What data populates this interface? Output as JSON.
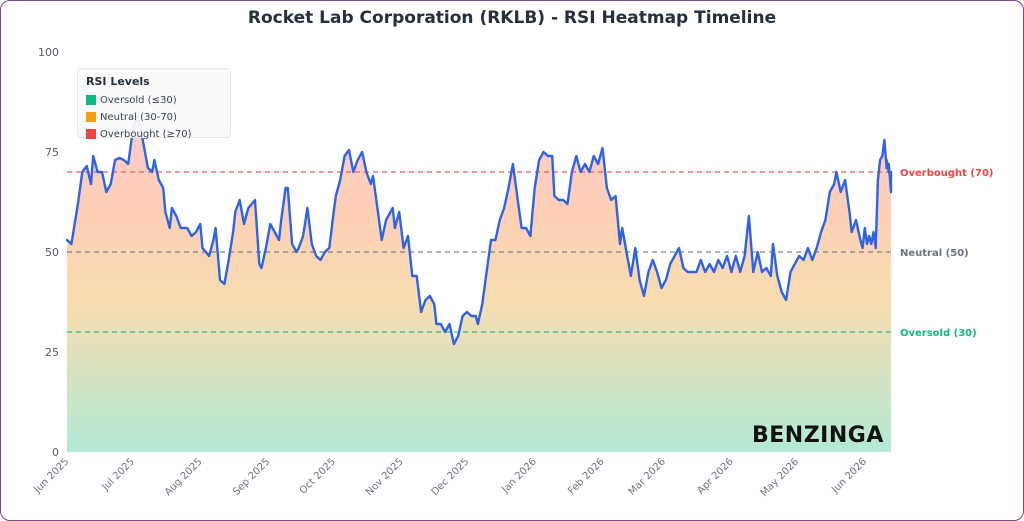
{
  "chart_data": {
    "type": "line",
    "title": "Rocket Lab Corporation (RKLB) - RSI Heatmap Timeline",
    "ylim": [
      0,
      100
    ],
    "y_ticks": [
      "0",
      "25",
      "50",
      "75",
      "100"
    ],
    "x_range": [
      "2025-05-31",
      "2026-06-12"
    ],
    "x_ticks": [
      {
        "date": "2025-06-01",
        "label": "Jun 2025"
      },
      {
        "date": "2025-07-01",
        "label": "Jul 2025"
      },
      {
        "date": "2025-08-01",
        "label": "Aug 2025"
      },
      {
        "date": "2025-09-01",
        "label": "Sep 2025"
      },
      {
        "date": "2025-10-01",
        "label": "Oct 2025"
      },
      {
        "date": "2025-11-01",
        "label": "Nov 2025"
      },
      {
        "date": "2025-12-01",
        "label": "Dec 2025"
      },
      {
        "date": "2026-01-01",
        "label": "Jan 2026"
      },
      {
        "date": "2026-02-01",
        "label": "Feb 2026"
      },
      {
        "date": "2026-03-01",
        "label": "Mar 2026"
      },
      {
        "date": "2026-04-01",
        "label": "Apr 2026"
      },
      {
        "date": "2026-05-01",
        "label": "May 2026"
      },
      {
        "date": "2026-06-01",
        "label": "Jun 2026"
      }
    ],
    "reference_lines": [
      {
        "value": 70,
        "label": "Overbought (70)",
        "color": "#ef4444"
      },
      {
        "value": 50,
        "label": "Neutral (50)",
        "color": "#6b7280"
      },
      {
        "value": 30,
        "label": "Oversold (30)",
        "color": "#10b981"
      }
    ],
    "legend": {
      "title": "RSI Levels",
      "placement": "top-left",
      "items": [
        {
          "label": "Oversold (≤30)",
          "color": "#10b981"
        },
        {
          "label": "Neutral (30-70)",
          "color": "#f59e0b"
        },
        {
          "label": "Overbought (≥70)",
          "color": "#ef4444"
        }
      ]
    },
    "series": [
      {
        "color": "#2f63e6",
        "points": [
          [
            "2025-05-31",
            53
          ],
          [
            "2025-06-02",
            52
          ],
          [
            "2025-06-05",
            62
          ],
          [
            "2025-06-07",
            70
          ],
          [
            "2025-06-09",
            71.5
          ],
          [
            "2025-06-11",
            67
          ],
          [
            "2025-06-12",
            74
          ],
          [
            "2025-06-14",
            70
          ],
          [
            "2025-06-16",
            70
          ],
          [
            "2025-06-18",
            65
          ],
          [
            "2025-06-20",
            67
          ],
          [
            "2025-06-22",
            73
          ],
          [
            "2025-06-24",
            73.5
          ],
          [
            "2025-06-26",
            73
          ],
          [
            "2025-06-28",
            72
          ],
          [
            "2025-06-30",
            80
          ],
          [
            "2025-07-02",
            84
          ],
          [
            "2025-07-04",
            80
          ],
          [
            "2025-07-07",
            71
          ],
          [
            "2025-07-09",
            70
          ],
          [
            "2025-07-10",
            73
          ],
          [
            "2025-07-12",
            68
          ],
          [
            "2025-07-14",
            66
          ],
          [
            "2025-07-15",
            60
          ],
          [
            "2025-07-17",
            56
          ],
          [
            "2025-07-18",
            61
          ],
          [
            "2025-07-20",
            59
          ],
          [
            "2025-07-22",
            56
          ],
          [
            "2025-07-25",
            56
          ],
          [
            "2025-07-27",
            54
          ],
          [
            "2025-07-29",
            55
          ],
          [
            "2025-07-31",
            57
          ],
          [
            "2025-08-01",
            51
          ],
          [
            "2025-08-04",
            49
          ],
          [
            "2025-08-06",
            53
          ],
          [
            "2025-08-07",
            56
          ],
          [
            "2025-08-09",
            43
          ],
          [
            "2025-08-11",
            42
          ],
          [
            "2025-08-13",
            48
          ],
          [
            "2025-08-15",
            55
          ],
          [
            "2025-08-16",
            60
          ],
          [
            "2025-08-18",
            63
          ],
          [
            "2025-08-20",
            57
          ],
          [
            "2025-08-22",
            61
          ],
          [
            "2025-08-25",
            63
          ],
          [
            "2025-08-27",
            47
          ],
          [
            "2025-08-28",
            46
          ],
          [
            "2025-08-30",
            51
          ],
          [
            "2025-09-01",
            57
          ],
          [
            "2025-09-03",
            55
          ],
          [
            "2025-09-05",
            53
          ],
          [
            "2025-09-06",
            58
          ],
          [
            "2025-09-08",
            66
          ],
          [
            "2025-09-09",
            66
          ],
          [
            "2025-09-11",
            52
          ],
          [
            "2025-09-13",
            50
          ],
          [
            "2025-09-14",
            51
          ],
          [
            "2025-09-16",
            54
          ],
          [
            "2025-09-18",
            61
          ],
          [
            "2025-09-20",
            52
          ],
          [
            "2025-09-22",
            49
          ],
          [
            "2025-09-24",
            48
          ],
          [
            "2025-09-26",
            50
          ],
          [
            "2025-09-28",
            51
          ],
          [
            "2025-09-30",
            60
          ],
          [
            "2025-10-01",
            64
          ],
          [
            "2025-10-03",
            68
          ],
          [
            "2025-10-05",
            74
          ],
          [
            "2025-10-07",
            75.5
          ],
          [
            "2025-10-09",
            70
          ],
          [
            "2025-10-11",
            73
          ],
          [
            "2025-10-13",
            75
          ],
          [
            "2025-10-15",
            70
          ],
          [
            "2025-10-17",
            67
          ],
          [
            "2025-10-18",
            69
          ],
          [
            "2025-10-20",
            61
          ],
          [
            "2025-10-22",
            53
          ],
          [
            "2025-10-24",
            58
          ],
          [
            "2025-10-26",
            60
          ],
          [
            "2025-10-27",
            61
          ],
          [
            "2025-10-28",
            56
          ],
          [
            "2025-10-30",
            60
          ],
          [
            "2025-11-01",
            51
          ],
          [
            "2025-11-03",
            54
          ],
          [
            "2025-11-05",
            44
          ],
          [
            "2025-11-07",
            44
          ],
          [
            "2025-11-09",
            35
          ],
          [
            "2025-11-11",
            38
          ],
          [
            "2025-11-13",
            39
          ],
          [
            "2025-11-15",
            37
          ],
          [
            "2025-11-16",
            32
          ],
          [
            "2025-11-18",
            32
          ],
          [
            "2025-11-20",
            30
          ],
          [
            "2025-11-22",
            32
          ],
          [
            "2025-11-24",
            27
          ],
          [
            "2025-11-26",
            29
          ],
          [
            "2025-11-28",
            34
          ],
          [
            "2025-11-30",
            35
          ],
          [
            "2025-12-02",
            34
          ],
          [
            "2025-12-04",
            34
          ],
          [
            "2025-12-05",
            32
          ],
          [
            "2025-12-07",
            37
          ],
          [
            "2025-12-09",
            45
          ],
          [
            "2025-12-11",
            53
          ],
          [
            "2025-12-13",
            53
          ],
          [
            "2025-12-15",
            58
          ],
          [
            "2025-12-17",
            61
          ],
          [
            "2025-12-19",
            66
          ],
          [
            "2025-12-21",
            72
          ],
          [
            "2025-12-23",
            64
          ],
          [
            "2025-12-25",
            56
          ],
          [
            "2025-12-27",
            56
          ],
          [
            "2025-12-29",
            54
          ],
          [
            "2025-12-31",
            66
          ],
          [
            "2026-01-02",
            73
          ],
          [
            "2026-01-04",
            75
          ],
          [
            "2026-01-06",
            74
          ],
          [
            "2026-01-08",
            74
          ],
          [
            "2026-01-09",
            64
          ],
          [
            "2026-01-11",
            63
          ],
          [
            "2026-01-13",
            63
          ],
          [
            "2026-01-15",
            62
          ],
          [
            "2026-01-17",
            70
          ],
          [
            "2026-01-19",
            74
          ],
          [
            "2026-01-21",
            70
          ],
          [
            "2026-01-23",
            72
          ],
          [
            "2026-01-25",
            70
          ],
          [
            "2026-01-27",
            74
          ],
          [
            "2026-01-29",
            72
          ],
          [
            "2026-01-31",
            76
          ],
          [
            "2026-02-02",
            66
          ],
          [
            "2026-02-04",
            63
          ],
          [
            "2026-02-06",
            64
          ],
          [
            "2026-02-08",
            52
          ],
          [
            "2026-02-09",
            56
          ],
          [
            "2026-02-11",
            50
          ],
          [
            "2026-02-13",
            44
          ],
          [
            "2026-02-15",
            51
          ],
          [
            "2026-02-17",
            43
          ],
          [
            "2026-02-19",
            39
          ],
          [
            "2026-02-21",
            45
          ],
          [
            "2026-02-23",
            48
          ],
          [
            "2026-02-25",
            45
          ],
          [
            "2026-02-27",
            41
          ],
          [
            "2026-03-01",
            43
          ],
          [
            "2026-03-03",
            47
          ],
          [
            "2026-03-05",
            49
          ],
          [
            "2026-03-07",
            51
          ],
          [
            "2026-03-09",
            46
          ],
          [
            "2026-03-11",
            45
          ],
          [
            "2026-03-13",
            45
          ],
          [
            "2026-03-15",
            45
          ],
          [
            "2026-03-17",
            48
          ],
          [
            "2026-03-19",
            45
          ],
          [
            "2026-03-21",
            47
          ],
          [
            "2026-03-23",
            45
          ],
          [
            "2026-03-25",
            48
          ],
          [
            "2026-03-27",
            46
          ],
          [
            "2026-03-29",
            49
          ],
          [
            "2026-03-31",
            45
          ],
          [
            "2026-04-02",
            49
          ],
          [
            "2026-04-04",
            45
          ],
          [
            "2026-04-06",
            49
          ],
          [
            "2026-04-08",
            59
          ],
          [
            "2026-04-10",
            45
          ],
          [
            "2026-04-12",
            50
          ],
          [
            "2026-04-14",
            45
          ],
          [
            "2026-04-16",
            46
          ],
          [
            "2026-04-18",
            44
          ],
          [
            "2026-04-19",
            52
          ],
          [
            "2026-04-21",
            44
          ],
          [
            "2026-04-23",
            40
          ],
          [
            "2026-04-25",
            38
          ],
          [
            "2026-04-27",
            45
          ],
          [
            "2026-04-29",
            47
          ],
          [
            "2026-05-01",
            49
          ],
          [
            "2026-05-03",
            48
          ],
          [
            "2026-05-05",
            51
          ],
          [
            "2026-05-07",
            48
          ],
          [
            "2026-05-09",
            51
          ],
          [
            "2026-05-11",
            55
          ],
          [
            "2026-05-13",
            58
          ],
          [
            "2026-05-15",
            65
          ],
          [
            "2026-05-17",
            67
          ],
          [
            "2026-05-18",
            70
          ],
          [
            "2026-05-20",
            65
          ],
          [
            "2026-05-22",
            68
          ],
          [
            "2026-05-24",
            60
          ],
          [
            "2026-05-25",
            55
          ],
          [
            "2026-05-27",
            58
          ],
          [
            "2026-05-29",
            53
          ],
          [
            "2026-05-30",
            51
          ],
          [
            "2026-05-31",
            56
          ],
          [
            "2026-06-01",
            52
          ],
          [
            "2026-06-02",
            54
          ],
          [
            "2026-06-03",
            52
          ],
          [
            "2026-06-04",
            55
          ],
          [
            "2026-06-05",
            51
          ],
          [
            "2026-06-06",
            68
          ],
          [
            "2026-06-07",
            73
          ],
          [
            "2026-06-08",
            74
          ],
          [
            "2026-06-09",
            78
          ],
          [
            "2026-06-10",
            71
          ],
          [
            "2026-06-10",
            73
          ],
          [
            "2026-06-11",
            70
          ],
          [
            "2026-06-11",
            72
          ],
          [
            "2026-06-12",
            65
          ],
          [
            "2026-06-12",
            70
          ]
        ]
      }
    ]
  },
  "watermark": "BENZINGA"
}
